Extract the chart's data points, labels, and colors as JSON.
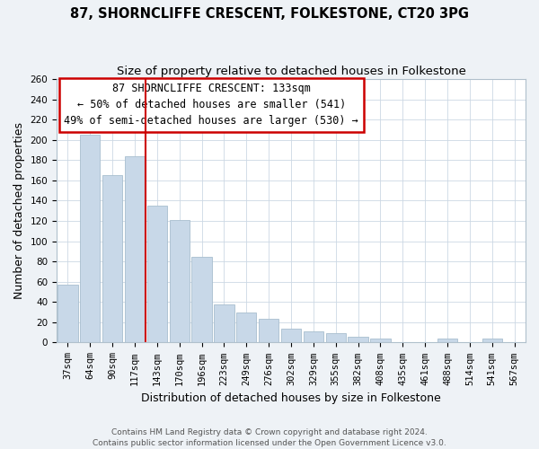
{
  "title": "87, SHORNCLIFFE CRESCENT, FOLKESTONE, CT20 3PG",
  "subtitle": "Size of property relative to detached houses in Folkestone",
  "xlabel": "Distribution of detached houses by size in Folkestone",
  "ylabel": "Number of detached properties",
  "categories": [
    "37sqm",
    "64sqm",
    "90sqm",
    "117sqm",
    "143sqm",
    "170sqm",
    "196sqm",
    "223sqm",
    "249sqm",
    "276sqm",
    "302sqm",
    "329sqm",
    "355sqm",
    "382sqm",
    "408sqm",
    "435sqm",
    "461sqm",
    "488sqm",
    "514sqm",
    "541sqm",
    "567sqm"
  ],
  "values": [
    57,
    205,
    165,
    184,
    135,
    121,
    85,
    38,
    30,
    23,
    14,
    11,
    9,
    6,
    4,
    0,
    0,
    4,
    0,
    4,
    0
  ],
  "bar_color": "#c8d8e8",
  "bar_edge_color": "#a8bece",
  "vline_color": "#cc0000",
  "vline_xindex": 3.5,
  "annotation_text": "87 SHORNCLIFFE CRESCENT: 133sqm\n← 50% of detached houses are smaller (541)\n49% of semi-detached houses are larger (530) →",
  "annotation_box_color": "#ffffff",
  "annotation_box_edge": "#cc0000",
  "ylim": [
    0,
    260
  ],
  "yticks": [
    0,
    20,
    40,
    60,
    80,
    100,
    120,
    140,
    160,
    180,
    200,
    220,
    240,
    260
  ],
  "footer": "Contains HM Land Registry data © Crown copyright and database right 2024.\nContains public sector information licensed under the Open Government Licence v3.0.",
  "bg_color": "#eef2f6",
  "plot_bg_color": "#ffffff",
  "title_fontsize": 10.5,
  "subtitle_fontsize": 9.5,
  "axis_label_fontsize": 9,
  "tick_fontsize": 7.5,
  "footer_fontsize": 6.5
}
